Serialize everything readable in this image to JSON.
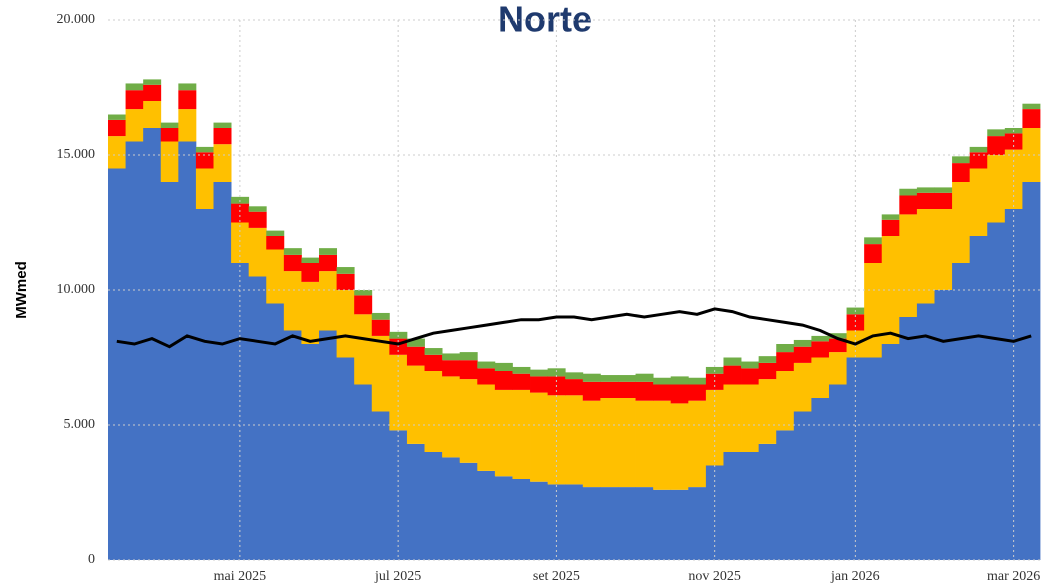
{
  "chart_data": {
    "type": "bar",
    "title": "Norte",
    "ylabel": "MWmed",
    "categories": [
      null,
      null,
      null,
      null,
      null,
      null,
      null,
      "mai 2025",
      null,
      null,
      null,
      null,
      null,
      null,
      null,
      null,
      "jul 2025",
      null,
      null,
      null,
      null,
      null,
      null,
      null,
      null,
      "set 2025",
      null,
      null,
      null,
      null,
      null,
      null,
      null,
      null,
      "nov 2025",
      null,
      null,
      null,
      null,
      null,
      null,
      null,
      "jan 2026",
      null,
      null,
      null,
      null,
      null,
      null,
      null,
      null,
      "mar 2026",
      null
    ],
    "stacked": true,
    "series": [
      {
        "color": "#4472c4",
        "values": [
          14500,
          15500,
          16000,
          14000,
          15500,
          13000,
          14000,
          11000,
          10500,
          9500,
          8500,
          8000,
          8500,
          7500,
          6500,
          5500,
          4800,
          4300,
          4000,
          3800,
          3600,
          3300,
          3100,
          3000,
          2900,
          2800,
          2800,
          2700,
          2700,
          2700,
          2700,
          2600,
          2600,
          2700,
          3500,
          4000,
          4000,
          4300,
          4800,
          5500,
          6000,
          6500,
          7500,
          7500,
          8000,
          9000,
          9500,
          10000,
          11000,
          12000,
          12500,
          13000,
          14000
        ]
      },
      {
        "color": "#ffc000",
        "values": [
          1200,
          1200,
          1000,
          1500,
          1200,
          1500,
          1400,
          1500,
          1800,
          2000,
          2200,
          2300,
          2200,
          2500,
          2600,
          2800,
          2800,
          2900,
          3000,
          3000,
          3100,
          3200,
          3200,
          3300,
          3300,
          3300,
          3300,
          3200,
          3300,
          3300,
          3200,
          3300,
          3200,
          3200,
          2800,
          2500,
          2500,
          2400,
          2200,
          1800,
          1500,
          1200,
          1000,
          3500,
          4000,
          3800,
          3500,
          3000,
          3000,
          2500,
          2500,
          2200,
          2000
        ]
      },
      {
        "color": "#ff0000",
        "values": [
          600,
          700,
          600,
          500,
          700,
          600,
          600,
          700,
          600,
          500,
          600,
          700,
          600,
          600,
          700,
          600,
          600,
          700,
          600,
          600,
          700,
          600,
          700,
          600,
          600,
          700,
          600,
          700,
          600,
          600,
          700,
          600,
          700,
          600,
          600,
          700,
          600,
          600,
          700,
          600,
          600,
          500,
          600,
          700,
          600,
          700,
          600,
          600,
          700,
          600,
          700,
          600,
          700
        ]
      },
      {
        "color": "#70ad47",
        "values": [
          200,
          250,
          200,
          200,
          250,
          200,
          200,
          250,
          200,
          200,
          250,
          200,
          250,
          250,
          200,
          250,
          250,
          300,
          250,
          250,
          300,
          250,
          300,
          250,
          250,
          300,
          250,
          300,
          250,
          250,
          300,
          250,
          300,
          250,
          250,
          300,
          250,
          250,
          300,
          250,
          200,
          200,
          250,
          250,
          200,
          250,
          200,
          200,
          250,
          200,
          250,
          200,
          200
        ]
      },
      {
        "type": "line",
        "color": "#000000",
        "values": [
          8100,
          8000,
          8200,
          7900,
          8300,
          8100,
          8000,
          8200,
          8100,
          8000,
          8300,
          8100,
          8200,
          8300,
          8200,
          8100,
          8000,
          8200,
          8400,
          8500,
          8600,
          8700,
          8800,
          8900,
          8900,
          9000,
          9000,
          8900,
          9000,
          9100,
          9000,
          9100,
          9200,
          9100,
          9300,
          9200,
          9000,
          8900,
          8800,
          8700,
          8500,
          8200,
          8000,
          8300,
          8400,
          8200,
          8300,
          8100,
          8200,
          8300,
          8200,
          8100,
          8300
        ]
      }
    ],
    "ylim": [
      0,
      20000
    ],
    "yticks": [
      0,
      {
        "value": 5000,
        "label": "5.000"
      },
      {
        "value": 10000,
        "label": "10.000"
      },
      {
        "value": 15000,
        "label": "15.000"
      },
      {
        "value": 20000,
        "label": "20.000"
      }
    ],
    "grid": true
  }
}
